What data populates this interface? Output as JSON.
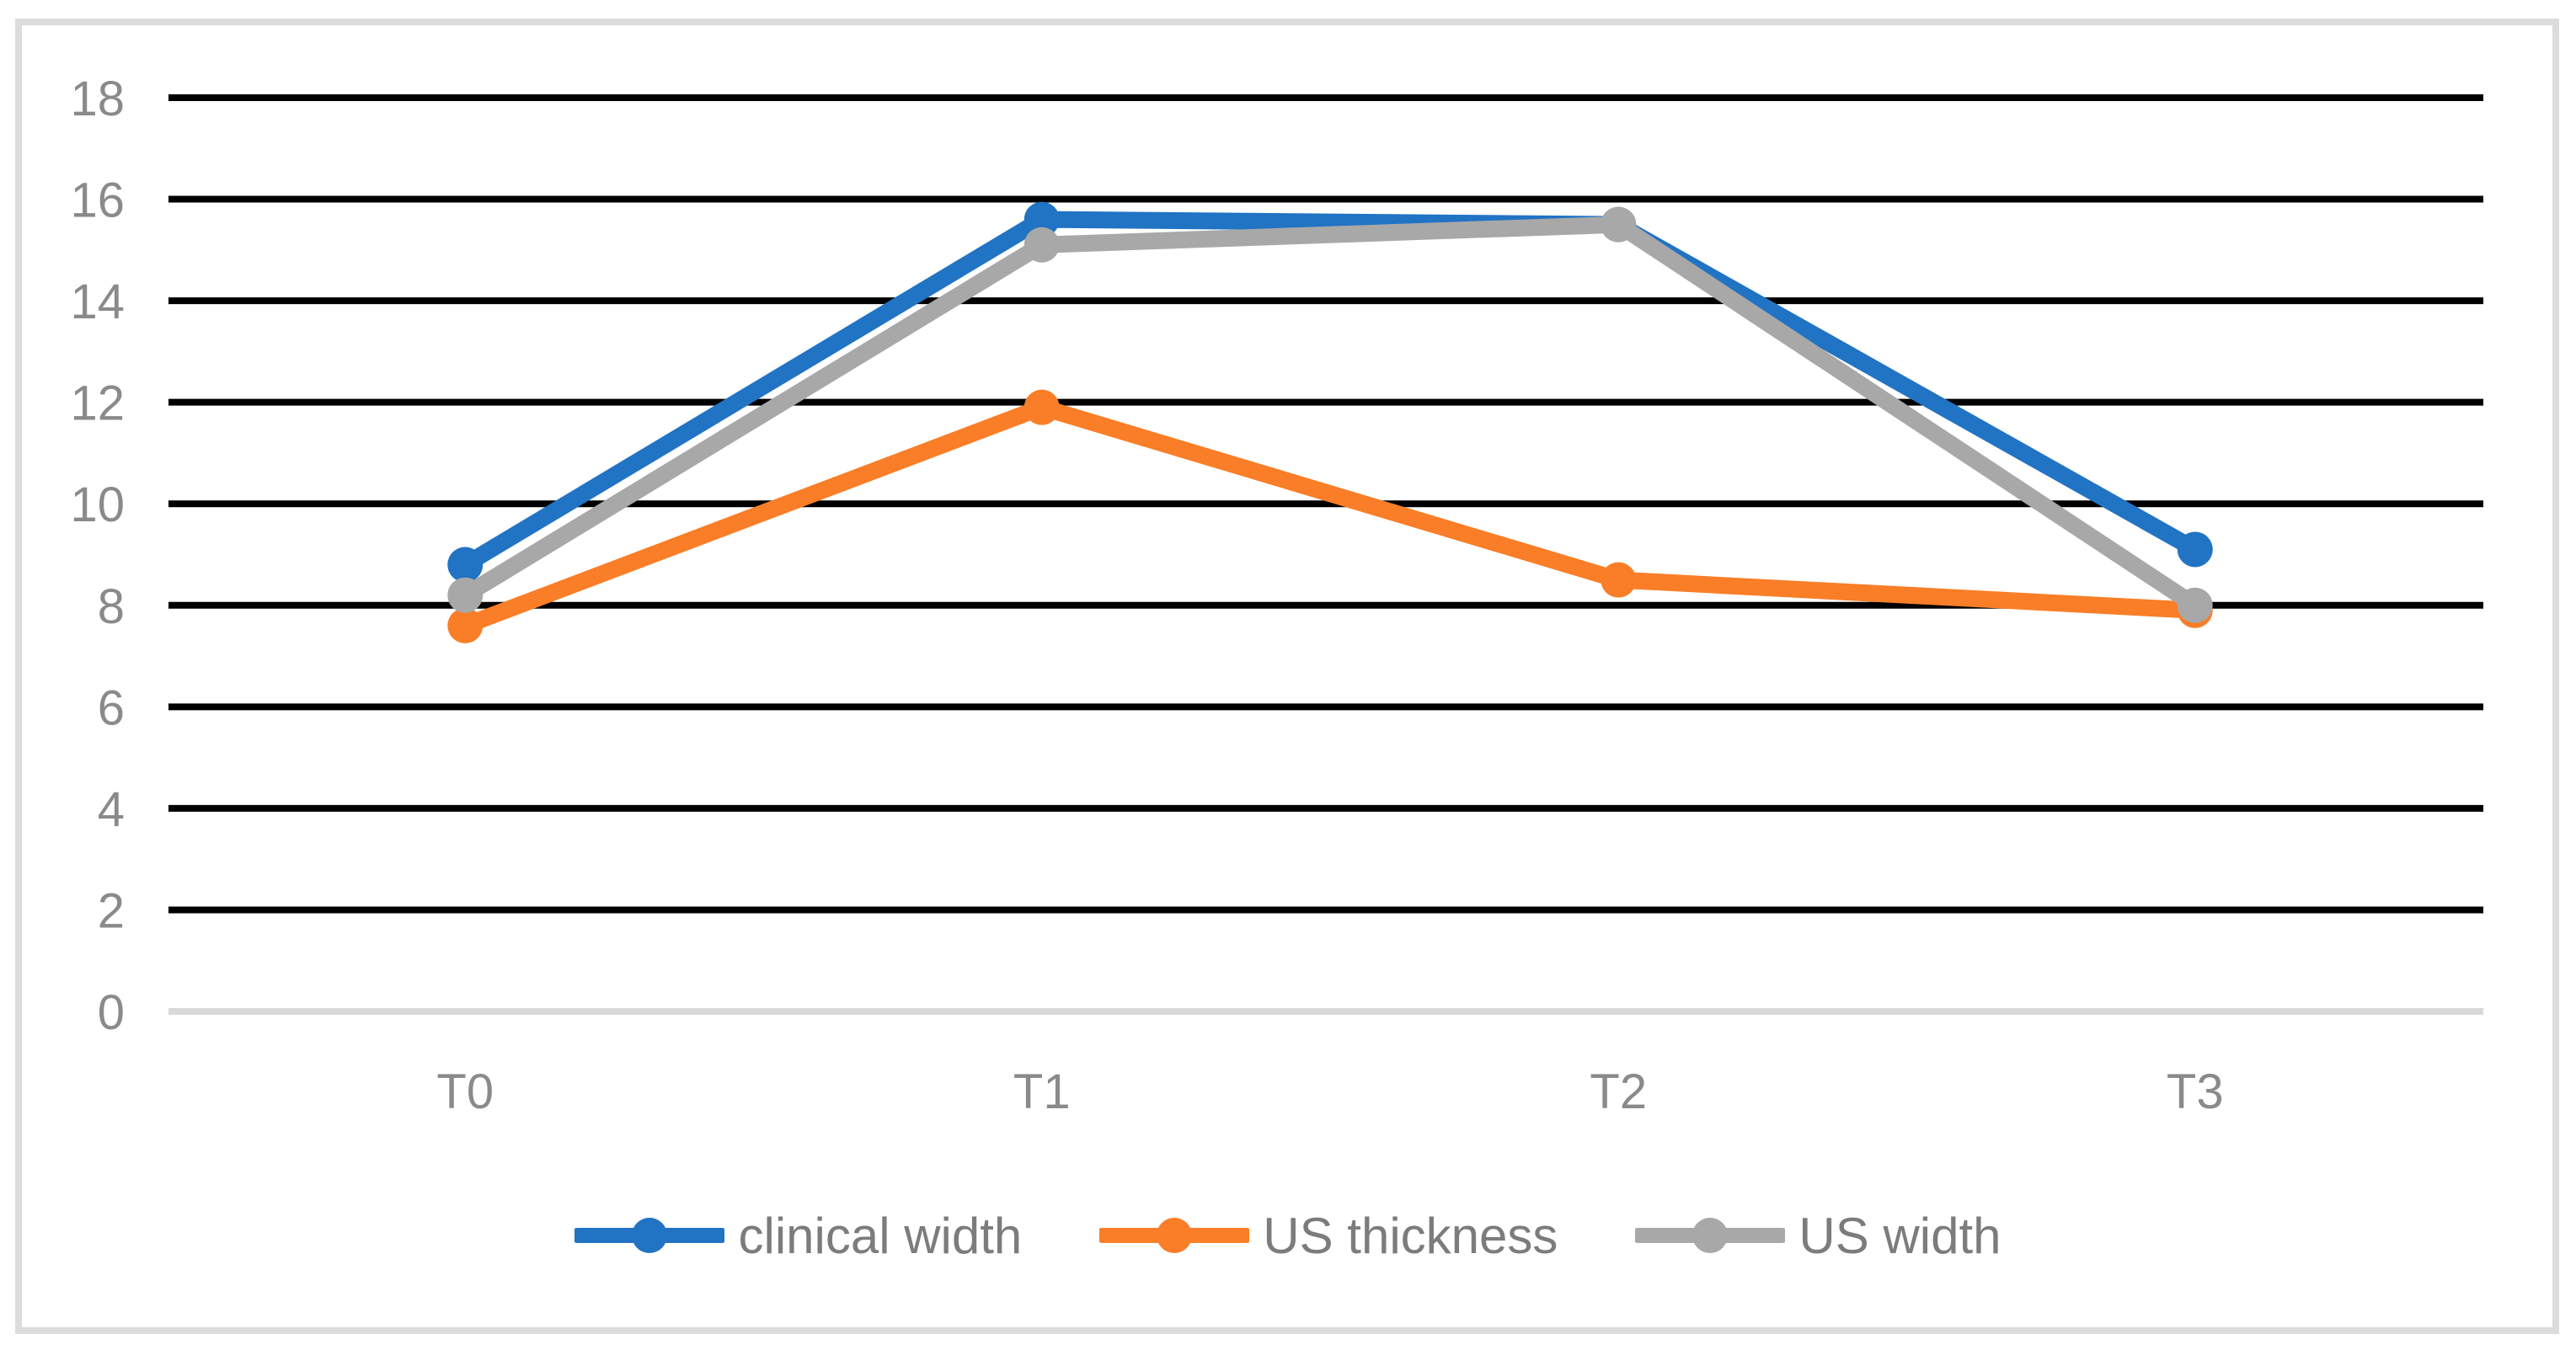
{
  "chart_data": {
    "type": "line",
    "title": "",
    "xlabel": "",
    "ylabel": "",
    "categories": [
      "T0",
      "T1",
      "T2",
      "T3"
    ],
    "series": [
      {
        "name": "clinical width",
        "color": "#2173c4",
        "values": [
          8.8,
          15.6,
          15.5,
          9.1
        ]
      },
      {
        "name": "US thickness",
        "color": "#f97e27",
        "values": [
          7.6,
          11.9,
          8.5,
          7.9
        ]
      },
      {
        "name": "US width",
        "color": "#a8a8a8",
        "values": [
          8.2,
          15.1,
          15.5,
          8.0
        ]
      }
    ],
    "ylim": [
      0,
      18
    ],
    "ytick_step": 2,
    "ytick_labels": [
      "0",
      "2",
      "4",
      "6",
      "8",
      "10",
      "12",
      "14",
      "16",
      "18"
    ],
    "grid": true,
    "gridline_color": "#000000",
    "zero_axis_line_color": "#d9d9d9",
    "tick_label_color": "#8a8a8a",
    "legend_position": "bottom",
    "legend_text_color": "#7c7c7c",
    "marker_style": "circle",
    "frame_border_color": "#dcdcdc",
    "background_color": "#ffffff"
  }
}
